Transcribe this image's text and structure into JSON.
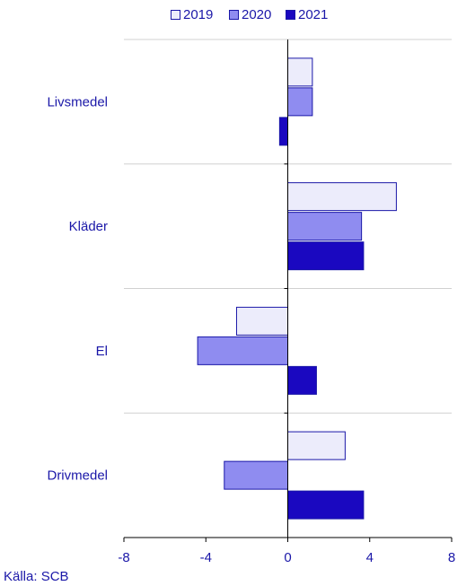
{
  "chart_data": {
    "type": "bar",
    "orientation": "horizontal",
    "categories": [
      "Livsmedel",
      "Kläder",
      "El",
      "Drivmedel"
    ],
    "series": [
      {
        "name": "2019",
        "values": [
          1.2,
          5.3,
          -2.5,
          2.8
        ],
        "color": "#ececfb"
      },
      {
        "name": "2020",
        "values": [
          1.2,
          3.6,
          -4.4,
          -3.1
        ],
        "color": "#8f8cf0"
      },
      {
        "name": "2021",
        "values": [
          -0.4,
          3.7,
          1.4,
          3.7
        ],
        "color": "#1a08c0"
      }
    ],
    "xlim": [
      -8,
      8
    ],
    "xticks": [
      "-8",
      "-4",
      "0",
      "4",
      "8"
    ],
    "title": "",
    "xlabel": "",
    "ylabel": "",
    "grid": "horizontal separators between categories",
    "legend_position": "top-center"
  },
  "legend": {
    "items": [
      {
        "label": "2019",
        "color": "#ececfb"
      },
      {
        "label": "2020",
        "color": "#8f8cf0"
      },
      {
        "label": "2021",
        "color": "#1a08c0"
      }
    ]
  },
  "source": "Källa: SCB"
}
